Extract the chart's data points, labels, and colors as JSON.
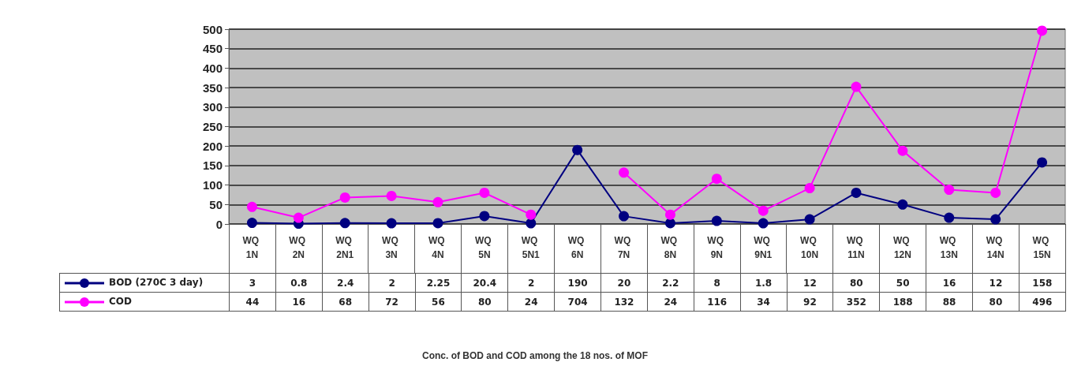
{
  "chart_data": {
    "type": "line",
    "title": "Conc. of BOD and COD among the 18 nos. of MOF",
    "categories": [
      "WQ 1N",
      "WQ 2N",
      "WQ 2N1",
      "WQ 3N",
      "WQ 4N",
      "WQ 5N",
      "WQ 5N1",
      "WQ 6N",
      "WQ 7N",
      "WQ 8N",
      "WQ 9N",
      "WQ 9N1",
      "WQ 10N",
      "WQ 11N",
      "WQ 12N",
      "WQ 13N",
      "WQ 14N",
      "WQ 15N"
    ],
    "series": [
      {
        "name": "BOD (270C 3 day)",
        "color": "#000080",
        "values": [
          3,
          0.8,
          2.4,
          2,
          2.25,
          20.4,
          2,
          190,
          20,
          2.2,
          8,
          1.8,
          12,
          80,
          50,
          16,
          12,
          158
        ],
        "value_labels": [
          "3",
          "0.8",
          "2.4",
          "2",
          "2.25",
          "20.4",
          "2",
          "190",
          "20",
          "2.2",
          "8",
          "1.8",
          "12",
          "80",
          "50",
          "16",
          "12",
          "158"
        ]
      },
      {
        "name": "COD",
        "color": "#ff00ff",
        "values": [
          44,
          16,
          68,
          72,
          56,
          80,
          24,
          null,
          132,
          24,
          116,
          34,
          92,
          352,
          188,
          88,
          80,
          496
        ],
        "value_labels": [
          "44",
          "16",
          "68",
          "72",
          "56",
          "80",
          "24",
          "704",
          "132",
          "24",
          "116",
          "34",
          "92",
          "352",
          "188",
          "88",
          "80",
          "496"
        ]
      }
    ],
    "ylim": [
      0,
      500
    ],
    "yticks": [
      0,
      50,
      100,
      150,
      200,
      250,
      300,
      350,
      400,
      450,
      500
    ],
    "grid": "y",
    "legend": "bottom left",
    "marker": "circle"
  }
}
